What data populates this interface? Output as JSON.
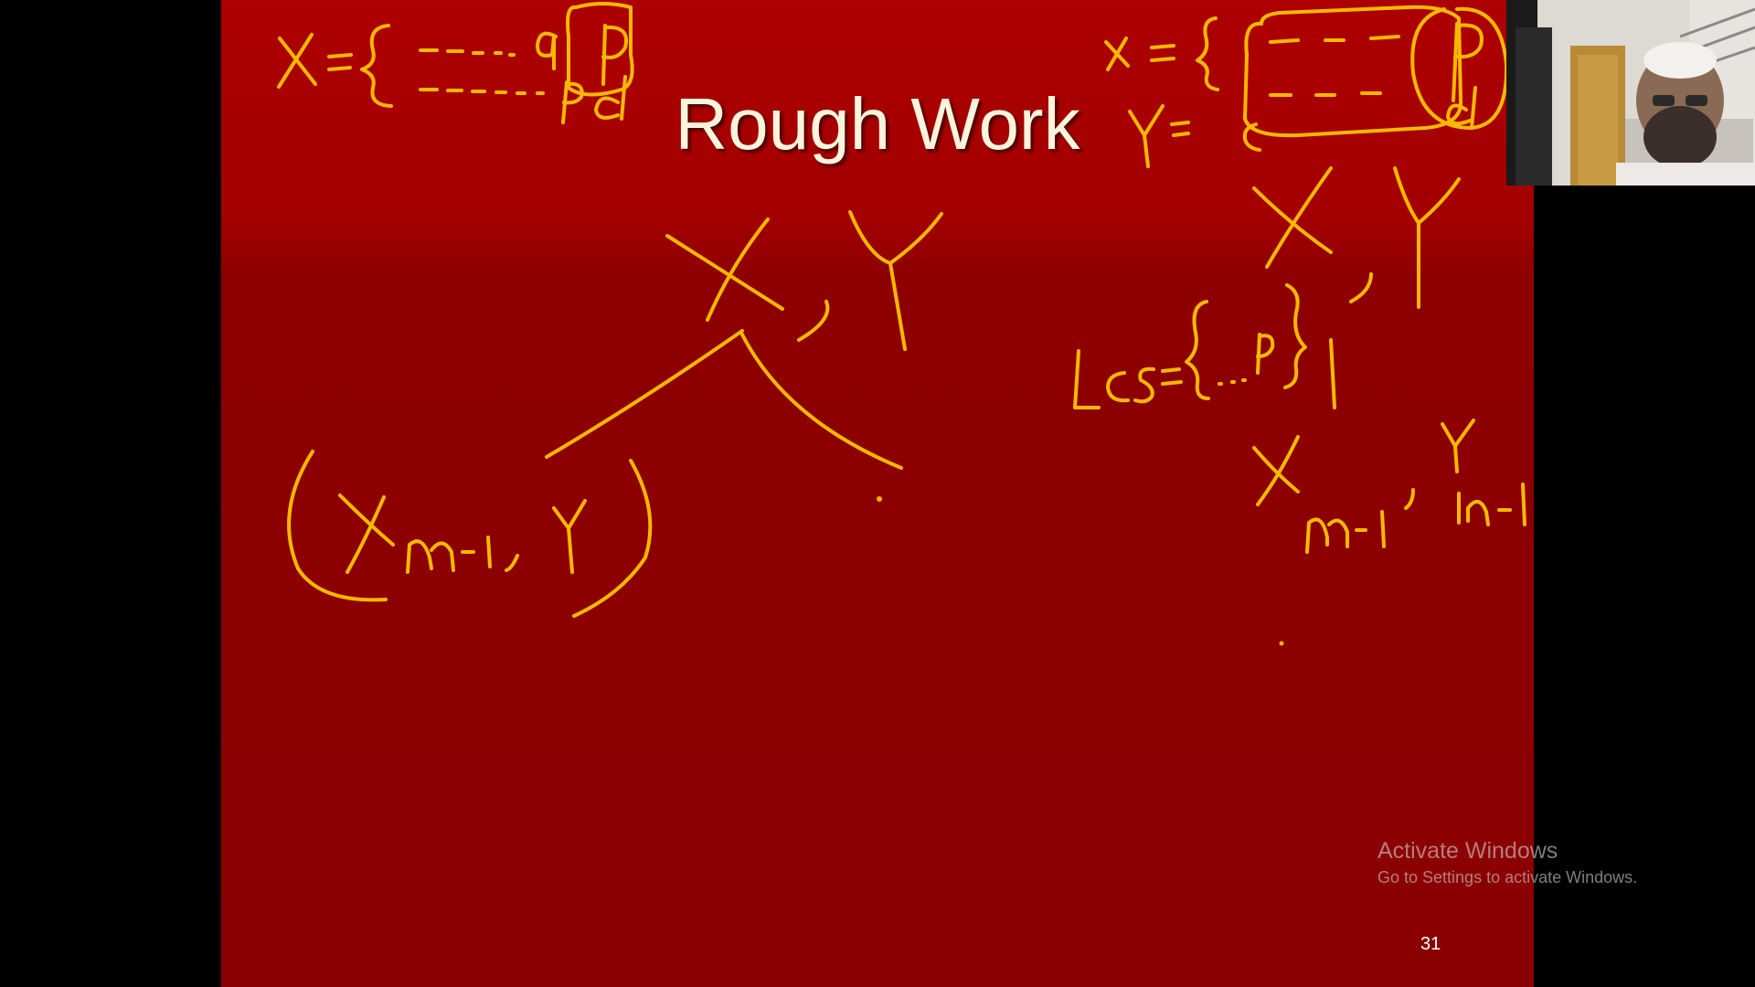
{
  "slide": {
    "title": "Rough Work",
    "page_number": "31",
    "background_color": "#8e0000",
    "annotation_color": "#f6b800"
  },
  "watermark": {
    "line1": "Activate Windows",
    "line2": "Go to Settings to activate Windows."
  },
  "webcam": {
    "icon": "presenter-video"
  }
}
